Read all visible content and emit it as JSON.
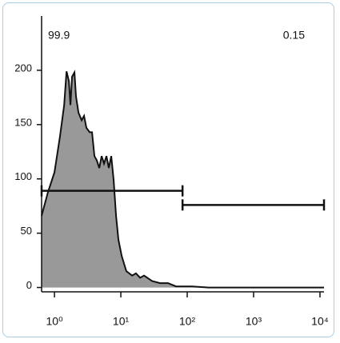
{
  "chart_data": {
    "type": "area",
    "x": [
      0.64,
      0.8,
      1.0,
      1.21,
      1.4,
      1.52,
      1.65,
      1.74,
      1.84,
      2.0,
      2.11,
      2.3,
      2.57,
      2.79,
      3.03,
      3.39,
      3.68,
      4.0,
      4.35,
      4.73,
      5.14,
      5.58,
      6.07,
      6.59,
      7.17,
      7.79,
      8.47,
      9.2,
      10.3,
      12.1,
      14.8,
      16.9,
      19.5,
      22.4,
      29.5,
      38.9,
      51.4,
      67.8,
      118,
      206,
      11500
    ],
    "values": [
      66,
      88,
      106,
      139,
      168,
      199,
      190,
      168,
      194,
      198,
      176,
      161,
      154,
      158,
      147,
      143,
      143,
      121,
      117,
      110,
      121,
      114,
      121,
      110,
      121,
      99,
      66,
      44,
      29,
      15,
      11,
      13,
      9,
      11,
      6,
      4,
      4,
      1,
      1,
      0,
      0
    ],
    "color": "#999999",
    "xscale": "log",
    "xlim": [
      0.64,
      11500
    ],
    "xticks": [
      {
        "value": 1,
        "label": "10⁰"
      },
      {
        "value": 10,
        "label": "10¹"
      },
      {
        "value": 100,
        "label": "10²"
      },
      {
        "value": 1000,
        "label": "10³"
      },
      {
        "value": 10000,
        "label": "10⁴"
      }
    ],
    "ylim": [
      -4,
      250
    ],
    "yticks": [
      0,
      50,
      100,
      150,
      200
    ],
    "gates": [
      {
        "label": "99.9",
        "range": [
          0.64,
          85
        ],
        "level": 89
      },
      {
        "label": "0.15",
        "range": [
          85,
          11500
        ],
        "level": 76
      }
    ]
  }
}
